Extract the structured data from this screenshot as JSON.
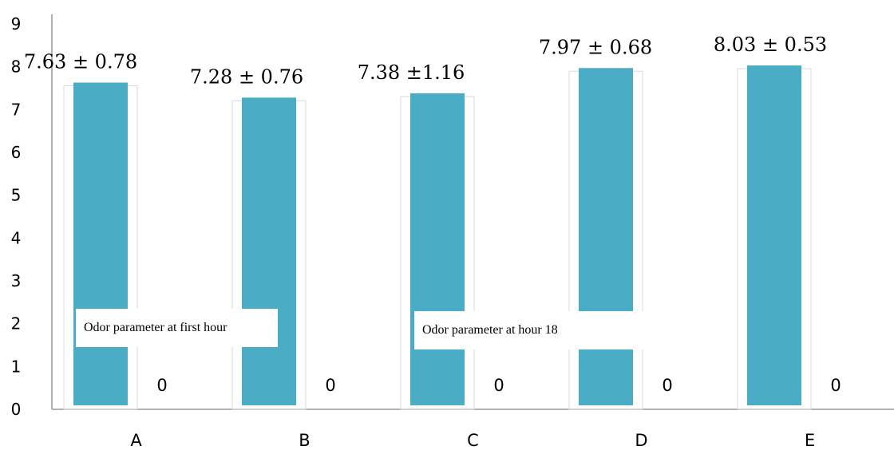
{
  "chart_data": {
    "type": "bar",
    "categories": [
      "A",
      "B",
      "C",
      "D",
      "E"
    ],
    "series": [
      {
        "name": "Odor parameter at first hour",
        "values": [
          7.63,
          7.28,
          7.38,
          7.97,
          8.03
        ],
        "labels": [
          "7.63 ± 0.78",
          "7.28 ± 0.76",
          "7.38 ±1.16",
          "7.97 ± 0.68",
          "8.03 ± 0.53"
        ],
        "color": "#4BACC6"
      },
      {
        "name": "Odor parameter at hour 18",
        "values": [
          0,
          0,
          0,
          0,
          0
        ],
        "labels": [
          "0",
          "0",
          "0",
          "0",
          "0"
        ],
        "color": "#4BACC6"
      }
    ],
    "ylim": [
      0,
      9
    ],
    "yticks": [
      "0",
      "1",
      "2",
      "3",
      "4",
      "5",
      "6",
      "7",
      "8",
      "9"
    ],
    "grid": false,
    "xlabel": "",
    "ylabel": "",
    "title": ""
  }
}
